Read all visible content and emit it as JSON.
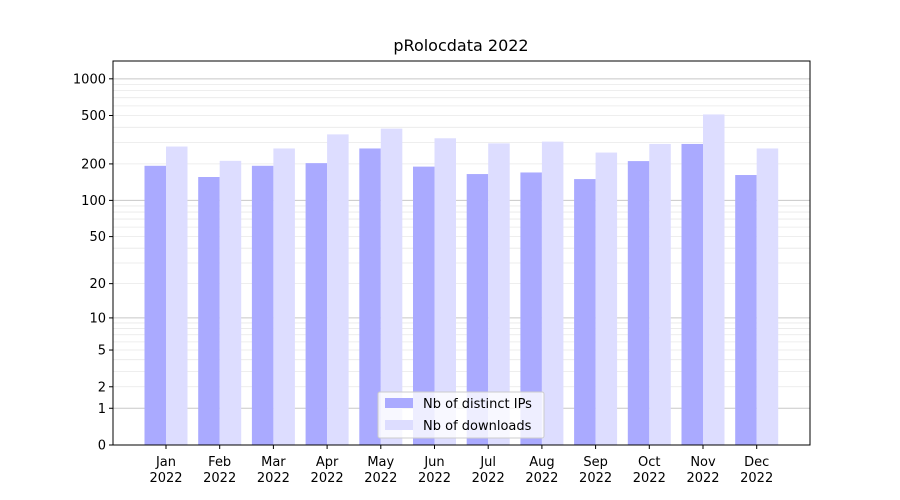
{
  "chart_data": {
    "type": "bar",
    "title": "pRolocdata 2022",
    "xlabel": "",
    "ylabel": "",
    "y_scale": "log1p",
    "ylim": [
      0,
      1400
    ],
    "y_ticks": [
      0,
      1,
      2,
      5,
      10,
      20,
      50,
      100,
      200,
      500,
      1000
    ],
    "categories": [
      {
        "month": "Jan",
        "year": "2022"
      },
      {
        "month": "Feb",
        "year": "2022"
      },
      {
        "month": "Mar",
        "year": "2022"
      },
      {
        "month": "Apr",
        "year": "2022"
      },
      {
        "month": "May",
        "year": "2022"
      },
      {
        "month": "Jun",
        "year": "2022"
      },
      {
        "month": "Jul",
        "year": "2022"
      },
      {
        "month": "Aug",
        "year": "2022"
      },
      {
        "month": "Sep",
        "year": "2022"
      },
      {
        "month": "Oct",
        "year": "2022"
      },
      {
        "month": "Nov",
        "year": "2022"
      },
      {
        "month": "Dec",
        "year": "2022"
      }
    ],
    "series": [
      {
        "name": "Nb of distinct IPs",
        "color": "#aaaaff",
        "values": [
          193,
          156,
          193,
          203,
          268,
          190,
          165,
          170,
          150,
          211,
          292,
          162
        ]
      },
      {
        "name": "Nb of downloads",
        "color": "#ddddff",
        "values": [
          278,
          212,
          268,
          350,
          390,
          325,
          295,
          305,
          248,
          292,
          510,
          268
        ]
      }
    ],
    "legend_position": "bottom-center",
    "grid": true
  }
}
